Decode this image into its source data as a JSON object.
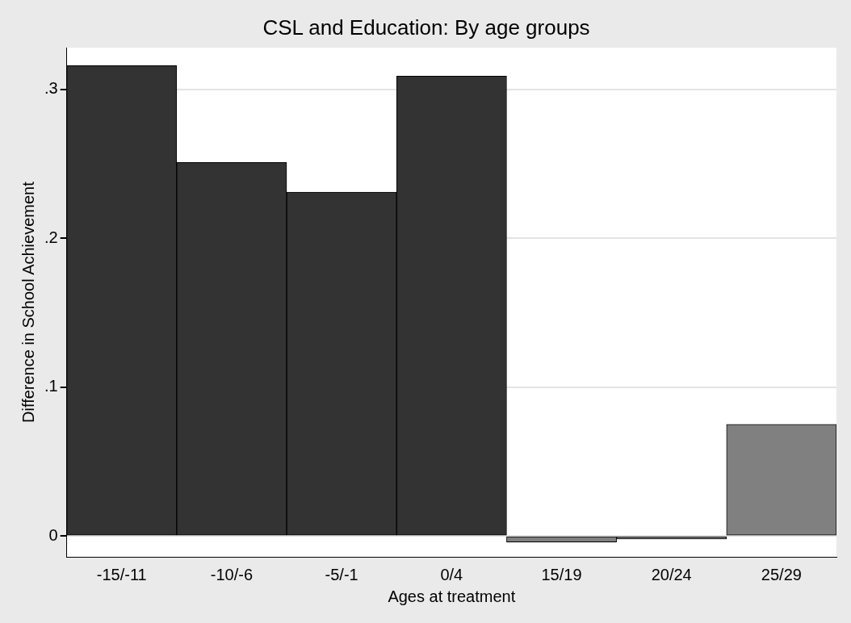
{
  "chart_data": {
    "type": "bar",
    "title": "CSL and Education: By age groups",
    "xlabel": "Ages at treatment",
    "ylabel": "Difference in School Achievement",
    "categories": [
      "-15/-11",
      "-10/-6",
      "-5/-1",
      "0/4",
      "15/19",
      "20/24",
      "25/29"
    ],
    "values": [
      0.316,
      0.251,
      0.231,
      0.309,
      -0.004,
      -0.002,
      0.075
    ],
    "colors": [
      "#333333",
      "#333333",
      "#333333",
      "#333333",
      "#808080",
      "#808080",
      "#808080"
    ],
    "ylim": [
      -0.014,
      0.328
    ],
    "yticks": [
      {
        "value": 0,
        "label": "0"
      },
      {
        "value": 0.1,
        "label": ".1"
      },
      {
        "value": 0.2,
        "label": ".2"
      },
      {
        "value": 0.3,
        "label": ".3"
      }
    ],
    "grid": "y",
    "legend": false
  }
}
